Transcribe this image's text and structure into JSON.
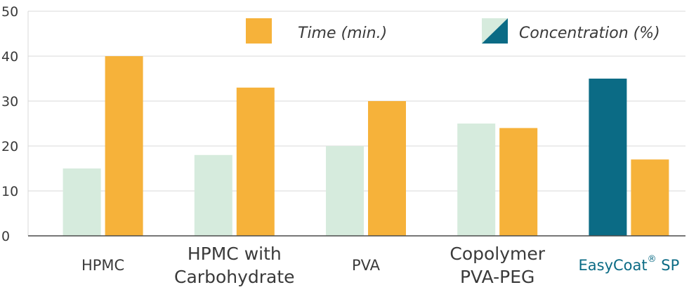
{
  "chart_data": {
    "type": "bar",
    "categories": [
      [
        "HPMC"
      ],
      [
        "HPMC with",
        "Carbohydrate"
      ],
      [
        "PVA"
      ],
      [
        "Copolymer",
        "PVA-PEG"
      ],
      [
        "EasyCoat",
        "®",
        " SP"
      ]
    ],
    "series": [
      {
        "name": "Concentration (%)",
        "values": [
          15,
          18,
          20,
          25,
          35
        ]
      },
      {
        "name": "Time (min.)",
        "values": [
          40,
          33,
          30,
          24,
          17
        ]
      }
    ],
    "y_ticks": [
      "0",
      "10",
      "20",
      "30",
      "40",
      "50"
    ],
    "ylim": [
      0,
      50
    ],
    "grid": true,
    "legend": {
      "placement": "top-right",
      "time_label": "Time (min.)",
      "concentration_label": "Concentration (%)"
    },
    "colors": {
      "time": "#F6B23A",
      "concentration": "#D6EBDD",
      "highlight": "#0B6B85",
      "highlight_text": "#0B6B85",
      "grid": "#d9d9d9",
      "axis": "#4a4a4a"
    }
  }
}
